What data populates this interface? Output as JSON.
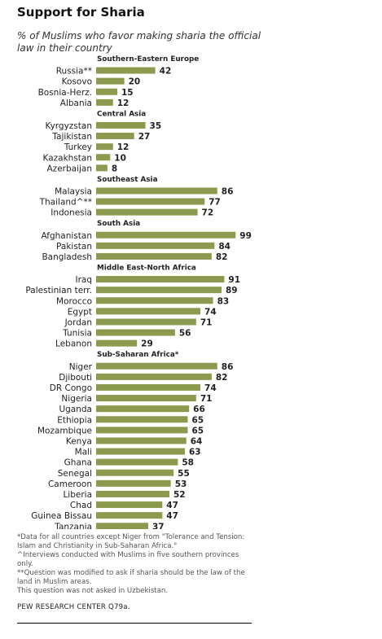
{
  "title": "Support for Sharia",
  "subtitle": "% of Muslims who favor making sharia the official law in their country",
  "notes": [
    "*Data for all countries except Niger from \"Tolerance and Tension: Islam and Christianity in Sub-Saharan Africa.\"",
    "^Interviews conducted with Muslims in five southern provinces only.",
    "**Question was modified to ask if sharia should be the law of the land in Muslim areas.",
    "This question was not asked in Uzbekistan."
  ],
  "source": "PEW RESEARCH CENTER Q79a.",
  "colors": {
    "bar": "#8b9a4e",
    "text": "#222222"
  },
  "chart_data": {
    "type": "bar",
    "orientation": "horizontal",
    "xlim": [
      0,
      100
    ],
    "grid": false,
    "groups": [
      {
        "name": "Southern-Eastern  Europe",
        "categories": [
          "Russia**",
          "Kosovo",
          "Bosnia-Herz.",
          "Albania"
        ],
        "values": [
          42,
          20,
          15,
          12
        ]
      },
      {
        "name": "Central Asia",
        "categories": [
          "Kyrgyzstan",
          "Tajikistan",
          "Turkey",
          "Kazakhstan",
          "Azerbaijan"
        ],
        "values": [
          35,
          27,
          12,
          10,
          8
        ]
      },
      {
        "name": "Southeast  Asia",
        "categories": [
          "Malaysia",
          "Thailand^**",
          "Indonesia"
        ],
        "values": [
          86,
          77,
          72
        ]
      },
      {
        "name": "South  Asia",
        "categories": [
          "Afghanistan",
          "Pakistan",
          "Bangladesh"
        ],
        "values": [
          99,
          84,
          82
        ]
      },
      {
        "name": "Middle East-North  Africa",
        "categories": [
          "Iraq",
          "Palestinian terr.",
          "Morocco",
          "Egypt",
          "Jordan",
          "Tunisia",
          "Lebanon"
        ],
        "values": [
          91,
          89,
          83,
          74,
          71,
          56,
          29
        ]
      },
      {
        "name": "Sub-Saharan  Africa*",
        "categories": [
          "Niger",
          "Djibouti",
          "DR Congo",
          "Nigeria",
          "Uganda",
          "Ethiopia",
          "Mozambique",
          "Kenya",
          "Mali",
          "Ghana",
          "Senegal",
          "Cameroon",
          "Liberia",
          "Chad",
          "Guinea Bissau",
          "Tanzania"
        ],
        "values": [
          86,
          82,
          74,
          71,
          66,
          65,
          65,
          64,
          63,
          58,
          55,
          53,
          52,
          47,
          47,
          37
        ]
      }
    ]
  }
}
